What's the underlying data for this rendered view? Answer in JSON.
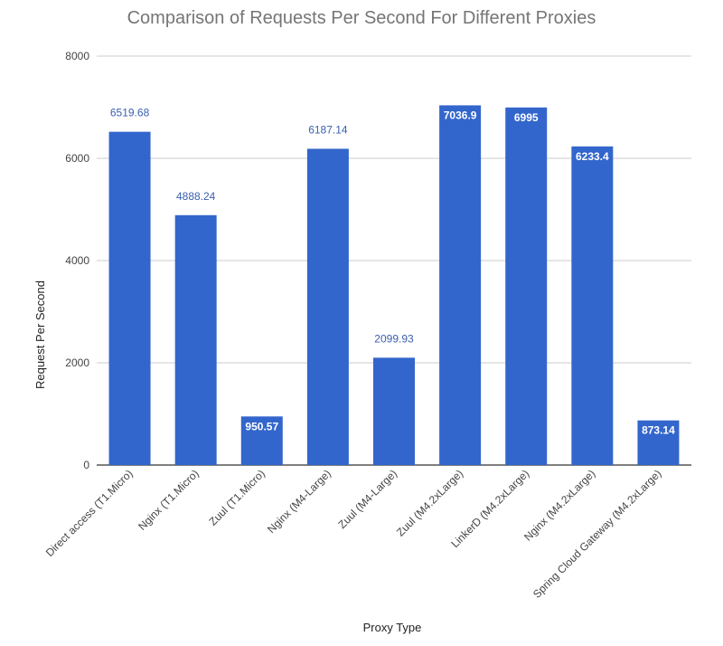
{
  "chart_data": {
    "type": "bar",
    "title": "Comparison of Requests Per Second For Different Proxies",
    "xlabel": "Proxy Type",
    "ylabel": "Request Per Second",
    "categories": [
      "Direct access (T1.Micro)",
      "Nginx (T1.Micro)",
      "Zuul (T1.Micro)",
      "Nginx (M4-Large)",
      "Zuul (M4-Large)",
      "Zuul (M4.2xLarge)",
      "LinkerD (M4.2xLarge)",
      "Nginx (M4.2xLarge)",
      "Spring Cloud Gateway (M4.2xLarge)"
    ],
    "values": [
      6519.68,
      4888.24,
      950.57,
      6187.14,
      2099.93,
      7036.9,
      6995,
      6233.4,
      873.14
    ],
    "value_labels": [
      "6519.68",
      "4888.24",
      "950.57",
      "6187.14",
      "2099.93",
      "7036.9",
      "6995",
      "6233.4",
      "873.14"
    ],
    "label_inside": [
      false,
      false,
      true,
      false,
      false,
      true,
      true,
      true,
      true
    ],
    "ylim": [
      0,
      8000
    ],
    "yticks": [
      0,
      2000,
      4000,
      6000,
      8000
    ],
    "ytick_labels": [
      "0",
      "2000",
      "4000",
      "6000",
      "8000"
    ],
    "grid": true,
    "legend": "none",
    "colors": {
      "bar": "#3366cc",
      "grid": "#cccccc",
      "axis": "#333333",
      "title": "#757575",
      "label_outside": "#3a5fb0"
    }
  }
}
